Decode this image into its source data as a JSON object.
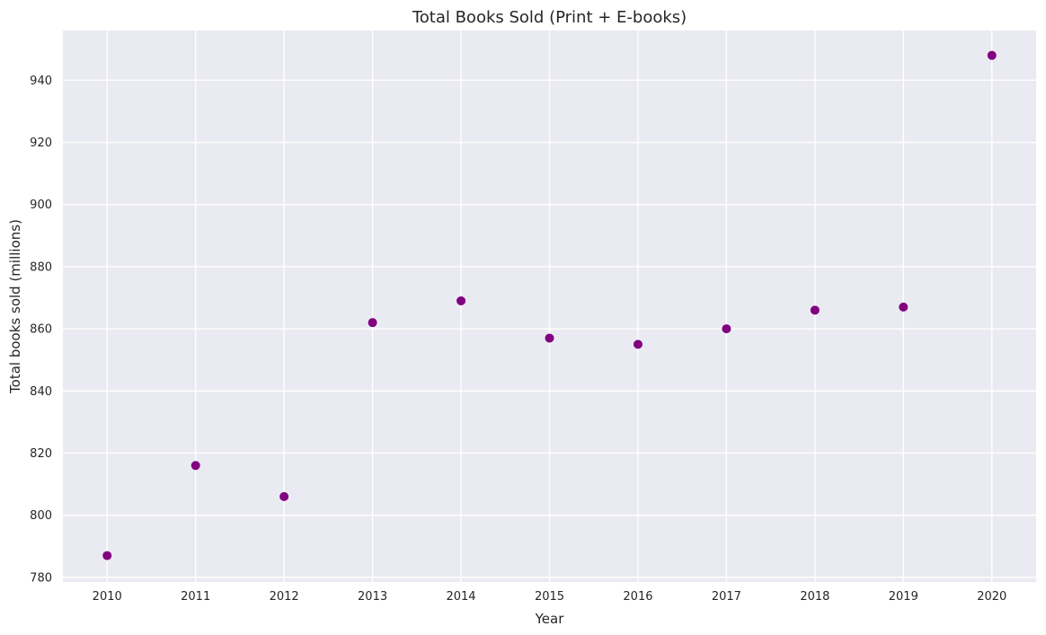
{
  "chart_data": {
    "type": "scatter",
    "title": "Total Books Sold (Print + E-books)",
    "xlabel": "Year",
    "ylabel": "Total books sold (millions)",
    "x": [
      2010,
      2011,
      2012,
      2013,
      2014,
      2015,
      2016,
      2017,
      2018,
      2019,
      2020
    ],
    "y": [
      787,
      816,
      806,
      862,
      869,
      857,
      855,
      860,
      866,
      867,
      948
    ],
    "xticks": [
      "2010",
      "2011",
      "2012",
      "2013",
      "2014",
      "2015",
      "2016",
      "2017",
      "2018",
      "2019",
      "2020"
    ],
    "yticks": [
      "780",
      "800",
      "820",
      "840",
      "860",
      "880",
      "900",
      "920",
      "940"
    ],
    "xlim": [
      2009.5,
      2020.5
    ],
    "ylim": [
      778.5,
      956
    ],
    "grid": true,
    "legend": "none",
    "colors": {
      "point": "#800080",
      "background": "#eaeaf2",
      "grid": "#ffffff"
    }
  }
}
